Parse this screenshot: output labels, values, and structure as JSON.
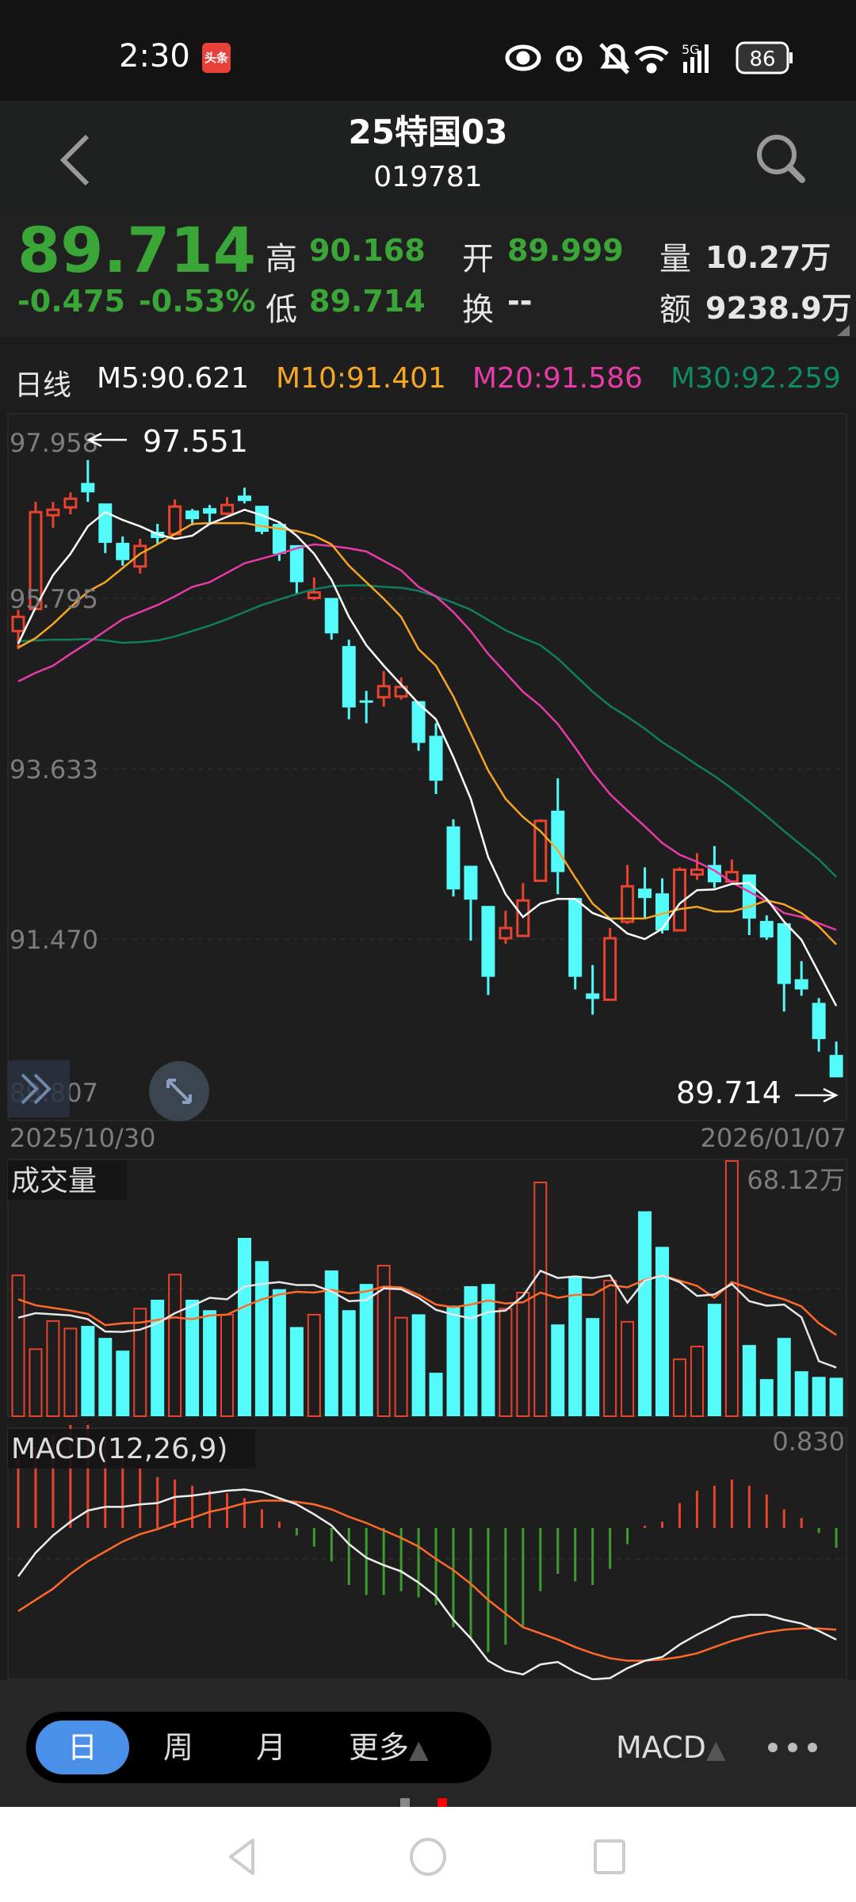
{
  "status_bar": {
    "time": "2:30",
    "app_badge": "头条",
    "battery": "86",
    "network": "5G",
    "icons": [
      "eye-icon",
      "alarm-icon",
      "bell-off-icon",
      "wifi-icon",
      "signal-icon",
      "battery-icon"
    ]
  },
  "header": {
    "title": "25特国03",
    "code": "019781",
    "back_icon": "chevron-left-icon",
    "search_icon": "search-icon"
  },
  "quote": {
    "price": "89.714",
    "change": "-0.475",
    "change_pct": "-0.53%",
    "high_label": "高",
    "high": "90.168",
    "low_label": "低",
    "low": "89.714",
    "open_label": "开",
    "open": "89.999",
    "turnover_label": "换",
    "turnover": "--",
    "volume_label": "量",
    "volume": "10.27万",
    "amount_label": "额",
    "amount": "9238.9万"
  },
  "ma_legend": {
    "period": "日线",
    "m5": "M5:90.621",
    "m10": "M10:91.401",
    "m20": "M20:91.586",
    "m30": "M30:92.259"
  },
  "colors": {
    "up": "#e8432f",
    "down": "#53fbfb",
    "m5": "#ffffff",
    "m10": "#f5a623",
    "m20": "#e83aa8",
    "m30": "#0f7d5e",
    "price_down": "#3aa637",
    "dea": "#ff6a2a",
    "hist_down": "#3c9c2c",
    "active_tab": "#4a8fe8"
  },
  "chart_data": [
    {
      "type": "candlestick",
      "y_ticks": [
        "97.958",
        "95.795",
        "93.633",
        "91.470",
        "89.807"
      ],
      "x_labels": [
        "2025/10/30",
        "2026/01/07"
      ],
      "high_marker": "97.551",
      "low_marker": "89.714",
      "ohlc": [
        [
          95.38,
          95.65,
          95.15,
          95.56
        ],
        [
          95.66,
          97.02,
          95.66,
          96.89
        ],
        [
          96.85,
          97.02,
          96.69,
          96.92
        ],
        [
          96.95,
          97.14,
          96.86,
          97.06
        ],
        [
          97.26,
          97.551,
          97.02,
          97.14
        ],
        [
          97.0,
          97.0,
          96.37,
          96.5
        ],
        [
          96.5,
          96.58,
          96.21,
          96.28
        ],
        [
          96.2,
          96.55,
          96.11,
          96.46
        ],
        [
          96.64,
          96.74,
          96.49,
          96.56
        ],
        [
          96.61,
          97.05,
          96.61,
          96.96
        ],
        [
          96.91,
          96.93,
          96.72,
          96.8
        ],
        [
          96.94,
          96.98,
          96.75,
          96.87
        ],
        [
          96.87,
          97.08,
          96.85,
          96.98
        ],
        [
          97.1,
          97.2,
          97.0,
          97.03
        ],
        [
          96.97,
          96.97,
          96.61,
          96.64
        ],
        [
          96.74,
          96.77,
          96.27,
          96.36
        ],
        [
          96.47,
          96.47,
          95.85,
          96.0
        ],
        [
          95.8,
          96.06,
          95.77,
          95.87
        ],
        [
          95.8,
          95.8,
          95.27,
          95.35
        ],
        [
          95.19,
          95.27,
          94.26,
          94.41
        ],
        [
          94.5,
          94.62,
          94.21,
          94.49
        ],
        [
          94.54,
          94.87,
          94.42,
          94.68
        ],
        [
          94.55,
          94.79,
          94.51,
          94.67
        ],
        [
          94.49,
          94.49,
          93.86,
          93.96
        ],
        [
          94.05,
          94.21,
          93.31,
          93.48
        ],
        [
          92.9,
          92.99,
          92.01,
          92.1
        ],
        [
          92.4,
          92.4,
          91.45,
          91.97
        ],
        [
          91.89,
          91.89,
          90.76,
          90.99
        ],
        [
          91.48,
          91.83,
          91.41,
          91.61
        ],
        [
          91.51,
          92.18,
          91.51,
          91.96
        ],
        [
          92.21,
          92.99,
          92.21,
          92.97
        ],
        [
          93.1,
          93.51,
          92.04,
          92.32
        ],
        [
          91.99,
          91.99,
          90.83,
          90.99
        ],
        [
          90.78,
          91.14,
          90.51,
          90.71
        ],
        [
          90.7,
          91.61,
          90.7,
          91.48
        ],
        [
          91.69,
          92.41,
          91.66,
          92.14
        ],
        [
          92.11,
          92.38,
          91.73,
          91.99
        ],
        [
          92.05,
          92.24,
          91.54,
          91.58
        ],
        [
          91.58,
          92.38,
          91.58,
          92.35
        ],
        [
          92.29,
          92.56,
          92.22,
          92.35
        ],
        [
          92.41,
          92.65,
          92.12,
          92.19
        ],
        [
          92.2,
          92.48,
          92.19,
          92.32
        ],
        [
          92.29,
          92.29,
          91.52,
          91.73
        ],
        [
          91.7,
          91.77,
          91.46,
          91.49
        ],
        [
          91.67,
          91.67,
          90.55,
          90.9
        ],
        [
          90.96,
          91.19,
          90.75,
          90.83
        ],
        [
          90.66,
          90.72,
          90.04,
          90.2
        ],
        [
          89.999,
          90.168,
          89.714,
          89.714
        ]
      ],
      "ma": {
        "m5": [
          95.22,
          95.68,
          96.09,
          96.36,
          96.71,
          96.89,
          96.79,
          96.71,
          96.61,
          96.55,
          96.59,
          96.74,
          96.83,
          96.92,
          96.85,
          96.76,
          96.59,
          96.36,
          96.03,
          95.56,
          95.2,
          94.94,
          94.7,
          94.46,
          94.26,
          93.78,
          93.25,
          92.51,
          92.04,
          91.75,
          91.92,
          91.98,
          91.98,
          91.8,
          91.72,
          91.54,
          91.47,
          91.6,
          91.92,
          92.09,
          92.1,
          92.17,
          92.18,
          91.98,
          91.69,
          91.46,
          91.04,
          90.621
        ],
        "m10": [
          95.17,
          95.29,
          95.47,
          95.68,
          95.88,
          96.0,
          96.18,
          96.36,
          96.48,
          96.61,
          96.74,
          96.75,
          96.75,
          96.75,
          96.71,
          96.68,
          96.65,
          96.59,
          96.48,
          96.21,
          96.0,
          95.79,
          95.56,
          95.15,
          94.94,
          94.55,
          94.08,
          93.61,
          93.25,
          93.02,
          92.84,
          92.6,
          92.25,
          91.92,
          91.73,
          91.73,
          91.73,
          91.79,
          91.85,
          91.88,
          91.82,
          91.82,
          91.88,
          91.96,
          91.91,
          91.8,
          91.63,
          91.401
        ],
        "m20": [
          94.74,
          94.85,
          94.94,
          95.09,
          95.23,
          95.38,
          95.53,
          95.62,
          95.71,
          95.82,
          95.94,
          96.0,
          96.12,
          96.24,
          96.3,
          96.36,
          96.43,
          96.48,
          96.46,
          96.43,
          96.39,
          96.27,
          96.15,
          95.94,
          95.82,
          95.62,
          95.38,
          95.09,
          94.85,
          94.61,
          94.43,
          94.2,
          93.9,
          93.58,
          93.31,
          93.1,
          92.9,
          92.69,
          92.54,
          92.45,
          92.34,
          92.19,
          92.07,
          91.95,
          91.8,
          91.75,
          91.67,
          91.586
        ],
        "m30": [
          95.25,
          95.26,
          95.27,
          95.27,
          95.28,
          95.26,
          95.23,
          95.24,
          95.26,
          95.31,
          95.38,
          95.45,
          95.53,
          95.62,
          95.71,
          95.78,
          95.85,
          95.91,
          95.95,
          95.96,
          95.96,
          95.94,
          95.93,
          95.89,
          95.82,
          95.74,
          95.65,
          95.52,
          95.39,
          95.29,
          95.2,
          95.03,
          94.82,
          94.61,
          94.43,
          94.29,
          94.14,
          93.97,
          93.83,
          93.68,
          93.54,
          93.38,
          93.21,
          93.03,
          92.84,
          92.66,
          92.48,
          92.259
        ]
      }
    },
    {
      "type": "bar",
      "title": "成交量",
      "max_label": "68.12万",
      "unit": "万",
      "values": [
        37.6,
        17.9,
        25.4,
        23.4,
        24.1,
        20.9,
        17.5,
        28.7,
        31.1,
        37.8,
        31.1,
        28.3,
        27.1,
        47.6,
        41.4,
        33.9,
        23.8,
        27.1,
        38.9,
        28.3,
        35.3,
        40.2,
        26.3,
        27.2,
        11.6,
        29.5,
        34.7,
        35.3,
        28.7,
        33.0,
        62.4,
        24.5,
        37.1,
        26.2,
        36.2,
        25.2,
        54.7,
        45.2,
        15.2,
        18.6,
        30.0,
        68.12,
        19.0,
        9.9,
        20.9,
        12.0,
        10.5,
        10.27
      ],
      "ma5": [
        26.3,
        27.5,
        27.2,
        26.9,
        25.9,
        22.6,
        22.5,
        23.1,
        24.8,
        27.5,
        29.5,
        31.6,
        31.2,
        34.6,
        35.3,
        35.8,
        35.0,
        35.0,
        33.3,
        30.7,
        31.0,
        34.1,
        33.9,
        31.6,
        28.4,
        27.1,
        26.1,
        27.8,
        28.2,
        32.1,
        38.8,
        36.9,
        37.3,
        36.9,
        37.6,
        30.3,
        36.2,
        37.6,
        35.8,
        32.1,
        32.5,
        35.3,
        30.7,
        29.5,
        29.8,
        26.4,
        14.7,
        13.0
      ],
      "ma10": [
        31.2,
        29.6,
        28.9,
        28.2,
        27.3,
        24.3,
        24.8,
        25.0,
        25.7,
        26.4,
        25.9,
        26.9,
        27.1,
        29.3,
        31.2,
        32.5,
        33.2,
        33.0,
        33.7,
        32.8,
        33.3,
        34.6,
        34.4,
        32.4,
        29.8,
        29.1,
        29.8,
        30.9,
        30.1,
        30.4,
        33.0,
        31.6,
        32.4,
        32.4,
        35.0,
        34.4,
        36.4,
        37.6,
        36.2,
        34.8,
        31.6,
        35.8,
        34.2,
        32.5,
        31.2,
        29.3,
        24.8,
        21.7
      ]
    },
    {
      "type": "macd",
      "title": "MACD(12,26,9)",
      "max_label": "0.830",
      "ylim": [
        -1.24,
        0.83
      ],
      "hist": [
        0.55,
        0.65,
        0.75,
        0.83,
        0.83,
        0.72,
        0.57,
        0.48,
        0.41,
        0.39,
        0.34,
        0.3,
        0.28,
        0.24,
        0.15,
        0.05,
        -0.06,
        -0.15,
        -0.27,
        -0.46,
        -0.54,
        -0.54,
        -0.51,
        -0.56,
        -0.62,
        -0.8,
        -0.89,
        -1.0,
        -0.94,
        -0.79,
        -0.51,
        -0.37,
        -0.43,
        -0.46,
        -0.33,
        -0.13,
        0.005,
        0.05,
        0.2,
        0.3,
        0.34,
        0.39,
        0.34,
        0.27,
        0.15,
        0.08,
        -0.04,
        -0.16
      ],
      "dif": [
        -0.39,
        -0.2,
        -0.06,
        0.05,
        0.14,
        0.17,
        0.17,
        0.19,
        0.2,
        0.25,
        0.26,
        0.28,
        0.3,
        0.31,
        0.29,
        0.24,
        0.19,
        0.11,
        0.02,
        -0.13,
        -0.24,
        -0.3,
        -0.35,
        -0.44,
        -0.55,
        -0.74,
        -0.89,
        -1.07,
        -1.15,
        -1.18,
        -1.1,
        -1.08,
        -1.16,
        -1.22,
        -1.21,
        -1.13,
        -1.07,
        -1.04,
        -0.94,
        -0.86,
        -0.79,
        -0.72,
        -0.7,
        -0.7,
        -0.74,
        -0.77,
        -0.83,
        -0.9
      ],
      "dea": [
        -0.67,
        -0.58,
        -0.49,
        -0.37,
        -0.27,
        -0.19,
        -0.11,
        -0.05,
        -0.01,
        0.04,
        0.08,
        0.13,
        0.16,
        0.2,
        0.22,
        0.22,
        0.21,
        0.19,
        0.15,
        0.09,
        0.04,
        -0.02,
        -0.08,
        -0.15,
        -0.25,
        -0.34,
        -0.45,
        -0.58,
        -0.69,
        -0.8,
        -0.85,
        -0.9,
        -0.96,
        -1.01,
        -1.05,
        -1.07,
        -1.07,
        -1.06,
        -1.04,
        -1.01,
        -0.96,
        -0.91,
        -0.87,
        -0.84,
        -0.82,
        -0.81,
        -0.81,
        -0.82
      ]
    }
  ],
  "toolbar": {
    "tabs": [
      {
        "label": "日",
        "active": true
      },
      {
        "label": "周"
      },
      {
        "label": "月"
      },
      {
        "label": "更多"
      }
    ],
    "indicator": "MACD",
    "more_icon": "ellipsis-icon"
  },
  "nav": {
    "icons": [
      "back-triangle-icon",
      "home-circle-icon",
      "recents-square-icon"
    ]
  }
}
